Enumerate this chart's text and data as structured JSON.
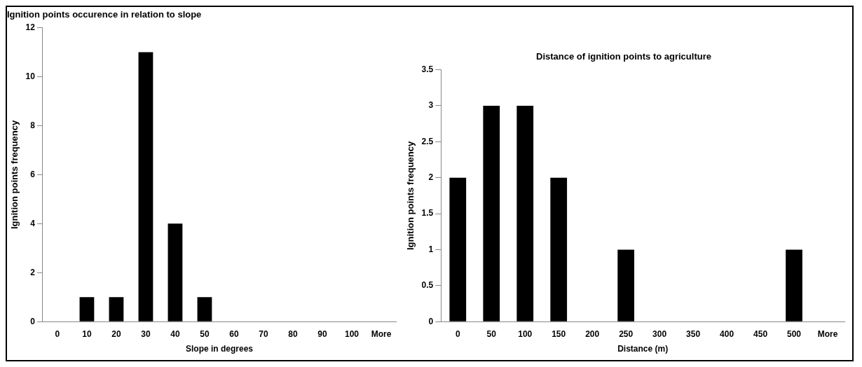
{
  "chart_data": [
    {
      "type": "bar",
      "title": "Ignition points occurence in relation to slope",
      "xlabel": "Slope in degrees",
      "ylabel": "Ignition points frequency",
      "categories": [
        "0",
        "10",
        "20",
        "30",
        "40",
        "50",
        "60",
        "70",
        "80",
        "90",
        "100",
        "More"
      ],
      "values": [
        0,
        1,
        1,
        11,
        4,
        1,
        0,
        0,
        0,
        0,
        0,
        0
      ],
      "color": "#000000",
      "ylim": [
        0,
        12
      ],
      "yticks": [
        0,
        2,
        4,
        6,
        8,
        10,
        12
      ]
    },
    {
      "type": "bar",
      "title": "Distance of ignition points to agriculture",
      "xlabel": "Distance (m)",
      "ylabel": "Ignition points frequency",
      "categories": [
        "0",
        "50",
        "100",
        "150",
        "200",
        "250",
        "300",
        "350",
        "400",
        "450",
        "500",
        "More"
      ],
      "values": [
        2,
        3,
        3,
        2,
        0,
        1,
        0,
        0,
        0,
        0,
        1,
        0
      ],
      "color": "#000000",
      "ylim": [
        0,
        3.5
      ],
      "yticks": [
        0,
        0.5,
        1,
        1.5,
        2,
        2.5,
        3,
        3.5
      ]
    }
  ]
}
